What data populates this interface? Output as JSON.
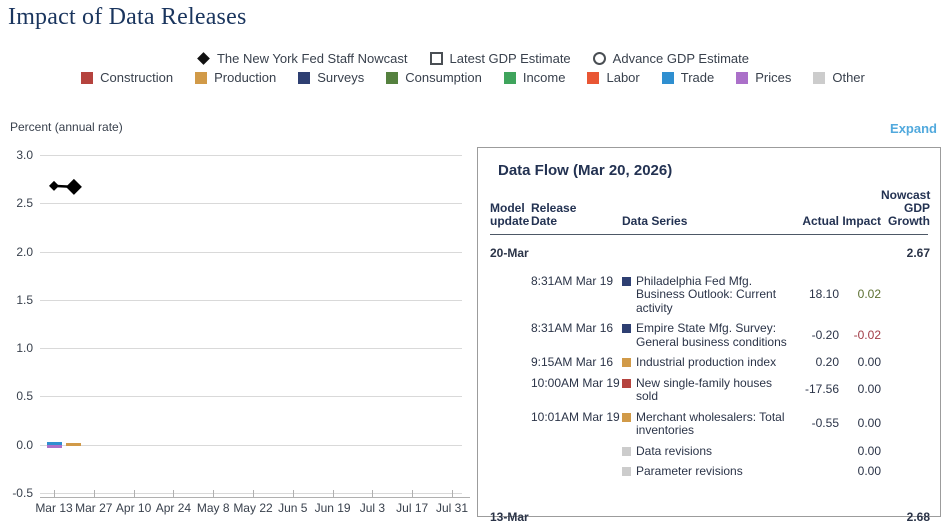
{
  "page": {
    "title": "Impact of Data Releases",
    "expand_label": "Expand"
  },
  "legend": {
    "series": [
      {
        "label": "The New York Fed Staff Nowcast",
        "marker": "diamond"
      },
      {
        "label": "Latest GDP Estimate",
        "marker": "square-outline"
      },
      {
        "label": "Advance GDP Estimate",
        "marker": "circle-outline"
      }
    ],
    "categories": [
      {
        "label": "Construction",
        "color": "#b5433e"
      },
      {
        "label": "Production",
        "color": "#d19a48"
      },
      {
        "label": "Surveys",
        "color": "#2e3f72"
      },
      {
        "label": "Consumption",
        "color": "#55813f"
      },
      {
        "label": "Income",
        "color": "#3fa45c"
      },
      {
        "label": "Labor",
        "color": "#e95634"
      },
      {
        "label": "Trade",
        "color": "#2f8fd0"
      },
      {
        "label": "Prices",
        "color": "#ab70c9"
      },
      {
        "label": "Other",
        "color": "#cccccc"
      }
    ]
  },
  "chart_data": {
    "type": "line+bar",
    "title": "Impact of Data Releases",
    "ylabel": "Percent (annual rate)",
    "ylim": [
      -0.5,
      3.0
    ],
    "yticks": [
      3.0,
      2.5,
      2.0,
      1.5,
      1.0,
      0.5,
      0.0,
      -0.5
    ],
    "ytick_labels": [
      "3.0",
      "2.5",
      "2.0",
      "1.5",
      "1.0",
      "0.5",
      "0.0",
      "-0.5"
    ],
    "xtick_labels": [
      "Mar 13",
      "Mar 27",
      "Apr 10",
      "Apr 24",
      "May 8",
      "May 22",
      "Jun 5",
      "Jun 19",
      "Jul 3",
      "Jul 17",
      "Jul 31"
    ],
    "grid": "horizontal",
    "legend_position": "top",
    "series": [
      {
        "name": "The New York Fed Staff Nowcast",
        "type": "line",
        "marker": "diamond",
        "color": "#000000",
        "points": [
          {
            "date": "Mar 13",
            "value": 2.68
          },
          {
            "date": "Mar 20",
            "value": 2.67
          }
        ]
      }
    ],
    "impact_bars": [
      {
        "date": "Mar 13",
        "segments": [
          {
            "category": "Trade",
            "value": 0.03
          },
          {
            "category": "Prices",
            "value": -0.03
          }
        ]
      },
      {
        "date": "Mar 20",
        "segments": [
          {
            "category": "Production",
            "value": 0.015
          },
          {
            "category": "Production",
            "value": -0.015
          }
        ]
      }
    ]
  },
  "data_flow": {
    "title": "Data Flow (Mar 20, 2026)",
    "columns": [
      "Model update",
      "Release Date",
      "Data Series",
      "Actual",
      "Impact",
      "Nowcast GDP Growth"
    ],
    "groups": [
      {
        "model_update": "20-Mar",
        "nowcast_gdp_growth": "2.67",
        "rows": [
          {
            "release_date": "8:31AM Mar 19",
            "series": "Philadelphia Fed Mfg. Business Outlook: Current activity",
            "category": "Surveys",
            "actual": "18.10",
            "impact": "0.02",
            "impact_sign": "positive"
          },
          {
            "release_date": "8:31AM Mar 16",
            "series": "Empire State Mfg. Survey: General business conditions",
            "category": "Surveys",
            "actual": "-0.20",
            "impact": "-0.02",
            "impact_sign": "negative"
          },
          {
            "release_date": "9:15AM Mar 16",
            "series": "Industrial production index",
            "category": "Production",
            "actual": "0.20",
            "impact": "0.00",
            "impact_sign": "zero"
          },
          {
            "release_date": "10:00AM Mar 19",
            "series": "New single-family houses sold",
            "category": "Construction",
            "actual": "-17.56",
            "impact": "0.00",
            "impact_sign": "zero"
          },
          {
            "release_date": "10:01AM Mar 19",
            "series": "Merchant wholesalers: Total inventories",
            "category": "Production",
            "actual": "-0.55",
            "impact": "0.00",
            "impact_sign": "zero"
          },
          {
            "release_date": "",
            "series": "Data revisions",
            "category": "Other",
            "actual": "",
            "impact": "0.00",
            "impact_sign": "zero"
          },
          {
            "release_date": "",
            "series": "Parameter revisions",
            "category": "Other",
            "actual": "",
            "impact": "0.00",
            "impact_sign": "zero"
          }
        ]
      },
      {
        "model_update": "13-Mar",
        "nowcast_gdp_growth": "2.68",
        "rows": []
      }
    ]
  }
}
